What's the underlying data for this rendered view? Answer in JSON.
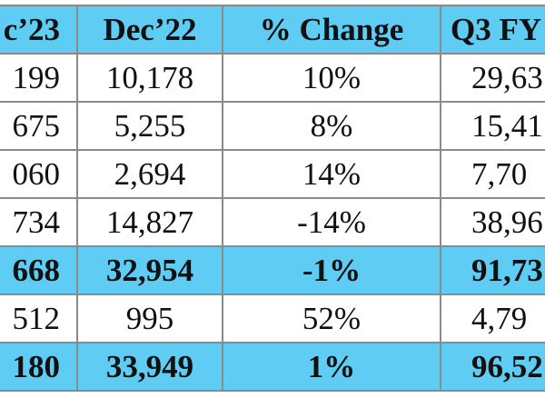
{
  "table": {
    "header": [
      "c’23",
      "Dec’22",
      "% Change",
      "Q3 FY"
    ],
    "rows": [
      [
        "199",
        "10,178",
        "10%",
        "29,63"
      ],
      [
        "675",
        "5,255",
        "8%",
        "15,41"
      ],
      [
        "060",
        "2,694",
        "14%",
        "7,70"
      ],
      [
        "734",
        "14,827",
        "-14%",
        "38,96"
      ],
      [
        "668",
        "32,954",
        "-1%",
        "91,73"
      ],
      [
        "512",
        "995",
        "52%",
        "4,79"
      ],
      [
        "180",
        "33,949",
        "1%",
        "96,52"
      ]
    ]
  }
}
